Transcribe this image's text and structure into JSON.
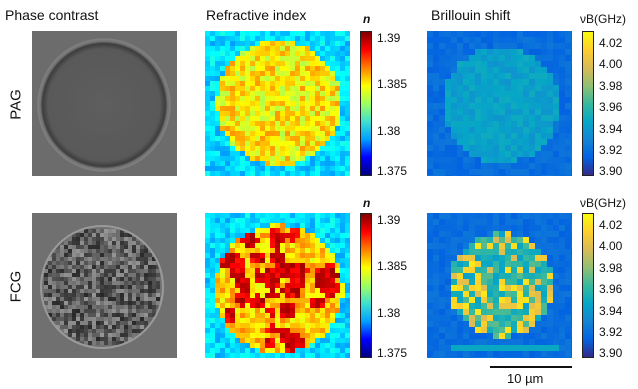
{
  "headers": {
    "col1": "Phase contrast",
    "col2": "Refractive index",
    "col3": "Brillouin shift"
  },
  "rows": {
    "row1": "PAG",
    "row2": "FCG"
  },
  "ri_colorbar": {
    "unit": "n",
    "ticks": [
      "1.39",
      "1.385",
      "1.38",
      "1.375"
    ]
  },
  "brillouin_colorbar": {
    "unit_symbol": "νB",
    "unit_label": "(GHz)",
    "ticks": [
      "4.02",
      "4.00",
      "3.98",
      "3.96",
      "3.94",
      "3.92",
      "3.90"
    ]
  },
  "scale_bar": {
    "label": "10 µm"
  },
  "colors": {
    "jet_low": "#2a2a8f",
    "jet_mid": "#4fb3d9",
    "jet_high": "#c8102e",
    "parula_low": "#3b3fa6",
    "parula_high": "#f5e61a"
  }
}
